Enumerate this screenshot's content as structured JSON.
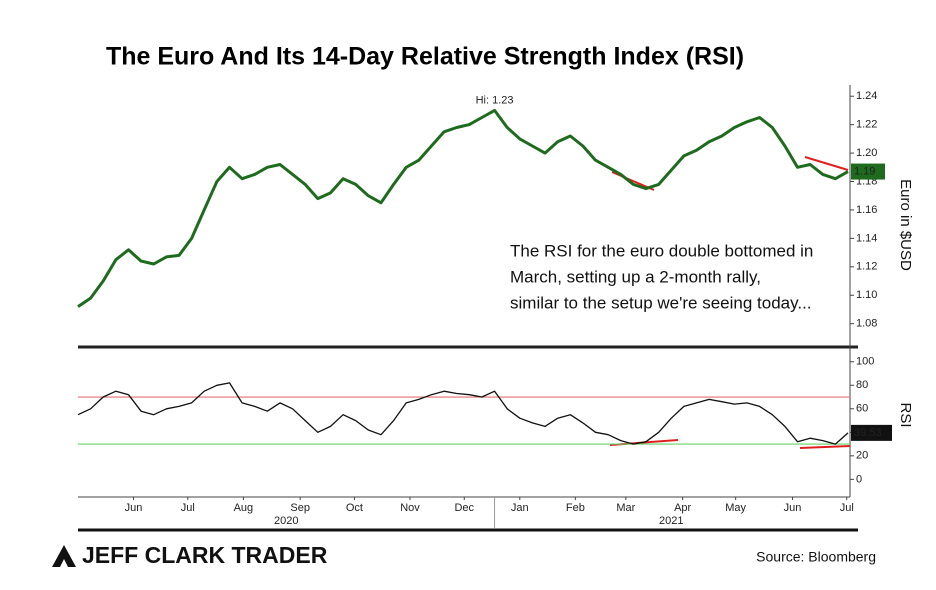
{
  "title": "The Euro And Its 14-Day Relative Strength Index (RSI)",
  "note": [
    "The RSI for the euro double bottomed in",
    "March, setting up a 2-month rally,",
    "similar to the setup we're seeing today..."
  ],
  "logo": "JEFF CLARK TRADER",
  "source": "Source: Bloomberg",
  "chart_data": [
    {
      "type": "line",
      "y_label": "Euro in $USD",
      "xlim": [
        0,
        61
      ],
      "ylim": [
        1.065,
        1.25
      ],
      "yticks": [
        1.08,
        {
          "value": 1.1,
          "label": "1.10"
        },
        1.12,
        1.14,
        1.16,
        1.18,
        {
          "value": 1.2,
          "label": "1.20"
        },
        1.22,
        1.24
      ],
      "series": [
        {
          "color": "#1e6b1e",
          "label_color": "#1e6b1e",
          "values": [
            1.092,
            1.098,
            1.11,
            1.125,
            1.132,
            1.124,
            1.122,
            1.127,
            1.128,
            1.14,
            1.16,
            1.18,
            1.19,
            1.182,
            1.185,
            1.19,
            1.192,
            1.185,
            1.178,
            1.168,
            1.172,
            1.182,
            1.178,
            1.17,
            1.165,
            1.178,
            1.19,
            1.195,
            1.205,
            1.215,
            1.218,
            1.22,
            1.225,
            1.23,
            1.218,
            1.21,
            1.205,
            1.2,
            1.208,
            1.212,
            1.205,
            1.195,
            1.19,
            1.185,
            1.178,
            1.175,
            1.178,
            1.188,
            1.198,
            1.202,
            1.208,
            1.212,
            1.218,
            1.222,
            1.225,
            1.218,
            1.205,
            1.19,
            1.192,
            1.185,
            1.182,
            1.187
          ],
          "value_labels": [
            null,
            null,
            null,
            null,
            null,
            null,
            null,
            null,
            null,
            null,
            null,
            null,
            null,
            null,
            null,
            null,
            null,
            null,
            null,
            null,
            null,
            null,
            null,
            null,
            null,
            null,
            null,
            null,
            null,
            null,
            null,
            null,
            null,
            null,
            null,
            null,
            null,
            null,
            null,
            null,
            null,
            null,
            null,
            null,
            null,
            null,
            null,
            null,
            null,
            null,
            null,
            null,
            null,
            null,
            null,
            null,
            null,
            null,
            null,
            null,
            null,
            "1.19"
          ]
        }
      ],
      "annotations": [
        {
          "text": "Hi: 1.23",
          "x": 33,
          "y": 1.23,
          "color": "#3a9a3a"
        }
      ]
    },
    {
      "type": "line",
      "y_label": "RSI",
      "xlim": [
        0,
        61
      ],
      "ylim": [
        -15,
        110
      ],
      "yticks": [
        0,
        20,
        40,
        60,
        80,
        100
      ],
      "hlines": [
        {
          "value": 70,
          "color": "#e07070"
        },
        {
          "value": 30,
          "color": "#66d066"
        }
      ],
      "series": [
        {
          "color": "#111111",
          "label_color": "#111111",
          "values": [
            55,
            60,
            70,
            75,
            72,
            58,
            55,
            60,
            62,
            65,
            75,
            80,
            82,
            65,
            62,
            58,
            65,
            60,
            50,
            40,
            45,
            55,
            50,
            42,
            38,
            50,
            65,
            68,
            72,
            75,
            73,
            72,
            70,
            75,
            60,
            52,
            48,
            45,
            52,
            55,
            48,
            40,
            38,
            33,
            30,
            32,
            40,
            52,
            62,
            65,
            68,
            66,
            64,
            65,
            62,
            55,
            45,
            32,
            35,
            33,
            30,
            39.53
          ],
          "value_labels": [
            null,
            null,
            null,
            null,
            null,
            null,
            null,
            null,
            null,
            null,
            null,
            null,
            null,
            null,
            null,
            null,
            null,
            null,
            null,
            null,
            null,
            null,
            null,
            null,
            null,
            null,
            null,
            null,
            null,
            null,
            null,
            null,
            null,
            null,
            null,
            null,
            null,
            null,
            null,
            null,
            null,
            null,
            null,
            null,
            null,
            null,
            null,
            null,
            null,
            null,
            null,
            null,
            null,
            null,
            null,
            null,
            null,
            null,
            null,
            null,
            null,
            "39.53"
          ]
        }
      ],
      "xticks": [
        {
          "value": 4.4,
          "label": "Jun"
        },
        {
          "value": 8.7,
          "label": "Jul"
        },
        {
          "value": 13.1,
          "label": "Aug"
        },
        {
          "value": 17.6,
          "label": "Sep"
        },
        {
          "value": 21.9,
          "label": "Oct"
        },
        {
          "value": 26.3,
          "label": "Nov"
        },
        {
          "value": 30.6,
          "label": "Dec"
        },
        {
          "value": 35.0,
          "label": "Jan"
        },
        {
          "value": 39.4,
          "label": "Feb"
        },
        {
          "value": 43.4,
          "label": "Mar"
        },
        {
          "value": 47.9,
          "label": "Apr"
        },
        {
          "value": 52.1,
          "label": "May"
        },
        {
          "value": 56.6,
          "label": "Jun"
        },
        {
          "value": 60.9,
          "label": "Jul"
        }
      ],
      "xgroups": [
        {
          "label": "2020",
          "range": [
            0,
            33
          ]
        },
        {
          "label": "2021",
          "range": [
            33,
            61
          ]
        }
      ]
    }
  ]
}
